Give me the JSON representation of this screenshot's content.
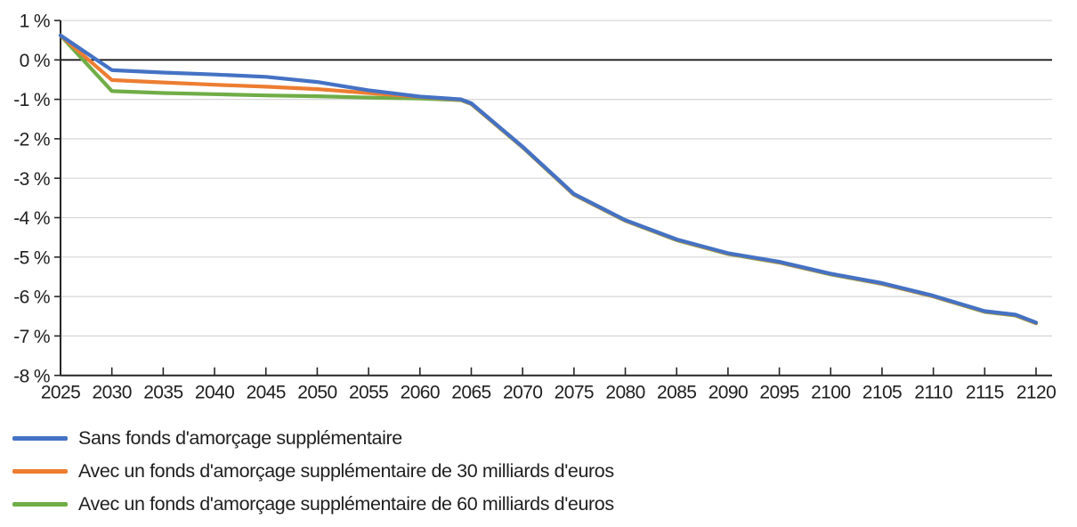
{
  "chart_data": {
    "type": "line",
    "title": "",
    "xlabel": "",
    "ylabel": "",
    "grid": true,
    "legend_position": "bottom-left",
    "xlim": [
      2025,
      2120
    ],
    "ylim": [
      -8,
      1
    ],
    "x": [
      2025,
      2030,
      2035,
      2040,
      2045,
      2050,
      2055,
      2060,
      2064,
      2065,
      2070,
      2075,
      2080,
      2085,
      2090,
      2095,
      2100,
      2105,
      2110,
      2115,
      2118,
      2120
    ],
    "series": [
      {
        "name": "Avec un fonds d'amorçage supplémentaire de 60 milliards d'euros",
        "color": "#70AD47",
        "values": [
          0.62,
          -0.79,
          -0.84,
          -0.87,
          -0.9,
          -0.92,
          -0.955,
          -0.98,
          -1.02,
          -1.12,
          -2.22,
          -3.42,
          -4.08,
          -4.57,
          -4.92,
          -5.14,
          -5.44,
          -5.68,
          -6.0,
          -6.39,
          -6.48,
          -6.68
        ]
      },
      {
        "name": "Avec un fonds d'amorçage supplémentaire de 30 milliards d'euros",
        "color": "#ED7D31",
        "values": [
          0.62,
          -0.51,
          -0.57,
          -0.63,
          -0.68,
          -0.74,
          -0.84,
          -0.94,
          -1.01,
          -1.11,
          -2.21,
          -3.41,
          -4.07,
          -4.56,
          -4.91,
          -5.13,
          -5.43,
          -5.67,
          -5.99,
          -6.38,
          -6.47,
          -6.67
        ]
      },
      {
        "name": "Sans fonds d'amorçage supplémentaire",
        "color": "#4472C4",
        "values": [
          0.62,
          -0.26,
          -0.32,
          -0.37,
          -0.43,
          -0.56,
          -0.77,
          -0.93,
          -1.0,
          -1.1,
          -2.2,
          -3.4,
          -4.06,
          -4.55,
          -4.9,
          -5.12,
          -5.42,
          -5.66,
          -5.98,
          -6.37,
          -6.46,
          -6.66
        ]
      }
    ],
    "y_axis": {
      "tick_values": [
        1,
        0,
        -1,
        -2,
        -3,
        -4,
        -5,
        -6,
        -7,
        -8
      ],
      "tick_labels": [
        "1 %",
        "0 %",
        "-1 %",
        "-2 %",
        "-3 %",
        "-4 %",
        "-5 %",
        "-6 %",
        "-7 %",
        "-8 %"
      ]
    },
    "x_axis": {
      "tick_values": [
        2025,
        2030,
        2035,
        2040,
        2045,
        2050,
        2055,
        2060,
        2065,
        2070,
        2075,
        2080,
        2085,
        2090,
        2095,
        2100,
        2105,
        2110,
        2115,
        2120
      ],
      "tick_labels": [
        "2025",
        "2030",
        "2035",
        "2040",
        "2045",
        "2050",
        "2055",
        "2060",
        "2065",
        "2070",
        "2075",
        "2080",
        "2085",
        "2090",
        "2095",
        "2100",
        "2105",
        "2110",
        "2115",
        "2120"
      ]
    }
  },
  "legend": {
    "items": [
      {
        "label": "Sans fonds d'amorçage supplémentaire",
        "color": "#4472C4"
      },
      {
        "label": "Avec un fonds d'amorçage supplémentaire de 30 milliards d'euros",
        "color": "#ED7D31"
      },
      {
        "label": "Avec un fonds d'amorçage supplémentaire de 60 milliards d'euros",
        "color": "#70AD47"
      }
    ]
  },
  "colors": {
    "axis": "#262626",
    "zero_line": "#1a1a1a",
    "gridline": "#d6d6d6",
    "text": "#1f1f1f"
  }
}
